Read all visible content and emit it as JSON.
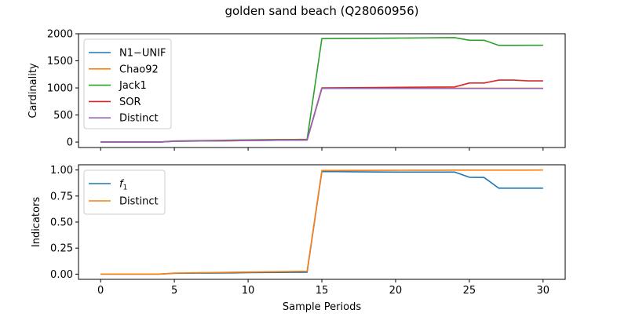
{
  "figure": {
    "title": "golden sand beach (Q28060956)"
  },
  "chart_data": [
    {
      "type": "line",
      "title": "golden sand beach (Q28060956)",
      "xlabel": "",
      "ylabel": "Cardinality",
      "xlim": [
        -1.5,
        31.5
      ],
      "ylim": [
        -100,
        2000
      ],
      "xticks": [
        0,
        5,
        10,
        15,
        20,
        25,
        30
      ],
      "yticks": [
        0,
        500,
        1000,
        1500,
        2000
      ],
      "xtick_labels_visible": false,
      "grid": false,
      "legend_position": "top-left",
      "x": [
        0,
        1,
        2,
        3,
        4,
        5,
        6,
        7,
        8,
        9,
        10,
        11,
        12,
        13,
        14,
        15,
        16,
        17,
        18,
        19,
        20,
        21,
        22,
        23,
        24,
        25,
        26,
        27,
        28,
        29,
        30
      ],
      "series": [
        {
          "name": "N1−UNIF",
          "color": "#1f77b4",
          "values": [
            0,
            0,
            0,
            0,
            0,
            15,
            18,
            20,
            22,
            25,
            30,
            32,
            34,
            36,
            38,
            990,
            990,
            990,
            990,
            990,
            990,
            990,
            990,
            990,
            990,
            990,
            990,
            990,
            990,
            990,
            990
          ]
        },
        {
          "name": "Chao92",
          "color": "#ff7f0e",
          "values": [
            0,
            0,
            0,
            0,
            0,
            16,
            19,
            21,
            23,
            26,
            31,
            33,
            35,
            37,
            39,
            995,
            995,
            995,
            995,
            995,
            995,
            995,
            995,
            995,
            995,
            995,
            995,
            995,
            995,
            995,
            995
          ]
        },
        {
          "name": "Jack1",
          "color": "#2ca02c",
          "values": [
            0,
            0,
            0,
            0,
            0,
            20,
            24,
            28,
            32,
            36,
            40,
            44,
            46,
            48,
            50,
            1910,
            1912,
            1914,
            1916,
            1918,
            1920,
            1922,
            1924,
            1926,
            1928,
            1880,
            1880,
            1785,
            1785,
            1787,
            1788
          ]
        },
        {
          "name": "SOR",
          "color": "#d62728",
          "values": [
            0,
            0,
            0,
            0,
            0,
            18,
            21,
            24,
            27,
            30,
            34,
            37,
            40,
            42,
            44,
            1000,
            1002,
            1004,
            1006,
            1008,
            1010,
            1012,
            1014,
            1016,
            1018,
            1090,
            1090,
            1145,
            1145,
            1130,
            1130
          ]
        },
        {
          "name": "Distinct",
          "color": "#9467bd",
          "values": [
            0,
            0,
            0,
            0,
            0,
            15,
            18,
            20,
            22,
            25,
            30,
            32,
            34,
            36,
            38,
            990,
            990,
            990,
            990,
            990,
            990,
            990,
            990,
            990,
            990,
            990,
            990,
            990,
            990,
            990,
            990
          ]
        }
      ]
    },
    {
      "type": "line",
      "title": "",
      "xlabel": "Sample Periods",
      "ylabel": "Indicators",
      "xlim": [
        -1.5,
        31.5
      ],
      "ylim": [
        -0.05,
        1.05
      ],
      "xticks": [
        0,
        5,
        10,
        15,
        20,
        25,
        30
      ],
      "xtick_labels": [
        "0",
        "5",
        "10",
        "15",
        "20",
        "25",
        "30"
      ],
      "yticks": [
        0.0,
        0.25,
        0.5,
        0.75,
        1.0
      ],
      "ytick_labels": [
        "0.00",
        "0.25",
        "0.50",
        "0.75",
        "1.00"
      ],
      "grid": false,
      "legend_position": "top-left",
      "x": [
        0,
        1,
        2,
        3,
        4,
        5,
        6,
        7,
        8,
        9,
        10,
        11,
        12,
        13,
        14,
        15,
        16,
        17,
        18,
        19,
        20,
        21,
        22,
        23,
        24,
        25,
        26,
        27,
        28,
        29,
        30
      ],
      "series": [
        {
          "name": "f₁",
          "color": "#1f77b4",
          "values": [
            0,
            0,
            0,
            0,
            0,
            0.008,
            0.009,
            0.01,
            0.011,
            0.012,
            0.014,
            0.015,
            0.016,
            0.017,
            0.018,
            0.985,
            0.984,
            0.983,
            0.982,
            0.981,
            0.98,
            0.98,
            0.98,
            0.98,
            0.98,
            0.93,
            0.928,
            0.825,
            0.825,
            0.825,
            0.825
          ]
        },
        {
          "name": "Distinct",
          "color": "#ff7f0e",
          "values": [
            0,
            0,
            0,
            0,
            0,
            0.01,
            0.012,
            0.014,
            0.016,
            0.018,
            0.02,
            0.022,
            0.024,
            0.026,
            0.028,
            0.995,
            0.995,
            0.996,
            0.996,
            0.997,
            0.997,
            0.998,
            0.998,
            0.998,
            0.999,
            0.999,
            0.999,
            0.999,
            0.999,
            0.999,
            1.0
          ]
        }
      ]
    }
  ]
}
